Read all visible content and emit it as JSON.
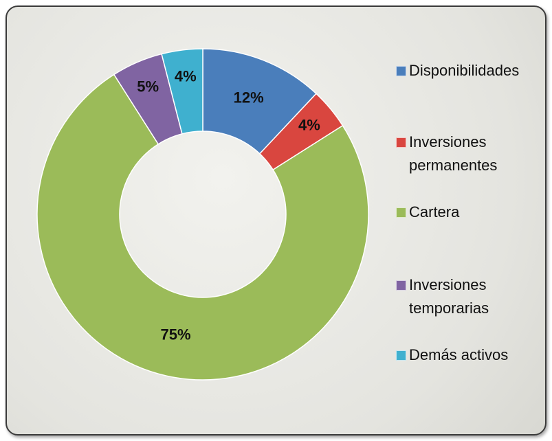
{
  "chart_data": {
    "type": "donut",
    "categories": [
      "Disponibilidades",
      "Inversiones permanentes",
      "Cartera",
      "Inversiones temporarias",
      "Demás activos"
    ],
    "values": [
      12,
      4,
      75,
      5,
      4
    ],
    "value_labels": [
      "12%",
      "4%",
      "75%",
      "5%",
      "4%"
    ],
    "colors": [
      "#4a7ebb",
      "#d9463f",
      "#9bbb59",
      "#8064a2",
      "#3fb0cf"
    ],
    "legend": "right"
  }
}
